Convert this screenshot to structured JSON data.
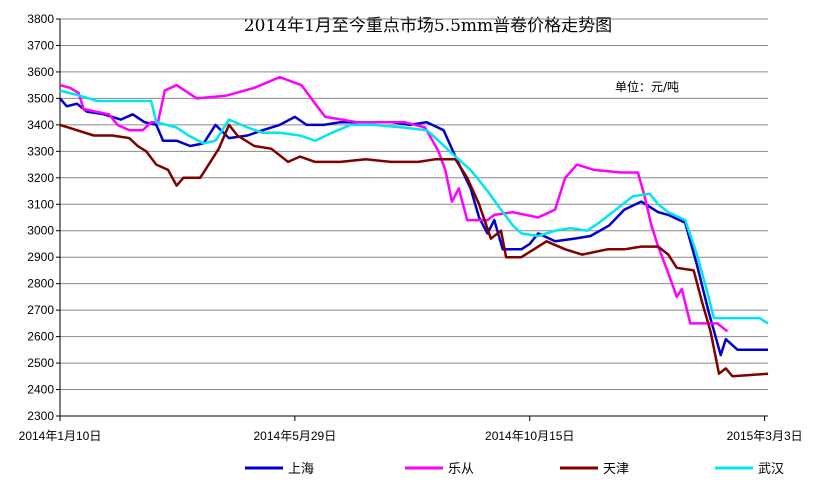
{
  "chart_data": {
    "type": "line",
    "title": "2014年1月至今重点市场5.5mm普卷价格走势图",
    "unit_label": "单位：元/吨",
    "xlabel": "",
    "ylabel": "",
    "ylim": [
      2300,
      3800
    ],
    "yticks": [
      2300,
      2400,
      2500,
      2600,
      2700,
      2800,
      2900,
      3000,
      3100,
      3200,
      3300,
      3400,
      3500,
      3600,
      3700,
      3800
    ],
    "x_range": [
      "2014-01-10",
      "2015-03-05"
    ],
    "xticks": [
      {
        "date": "2014-01-10",
        "label": "2014年1月10日"
      },
      {
        "date": "2014-05-29",
        "label": "2014年5月29日"
      },
      {
        "date": "2014-10-15",
        "label": "2014年10月15日"
      },
      {
        "date": "2015-03-03",
        "label": "2015年3月3日"
      }
    ],
    "grid": "horizontal",
    "legend_position": "bottom",
    "series": [
      {
        "name": "上海",
        "color": "#0000cc",
        "points": [
          [
            "2014-01-10",
            3500
          ],
          [
            "2014-01-14",
            3470
          ],
          [
            "2014-01-20",
            3480
          ],
          [
            "2014-01-26",
            3450
          ],
          [
            "2014-02-05",
            3440
          ],
          [
            "2014-02-15",
            3420
          ],
          [
            "2014-02-22",
            3440
          ],
          [
            "2014-03-01",
            3410
          ],
          [
            "2014-03-08",
            3400
          ],
          [
            "2014-03-12",
            3340
          ],
          [
            "2014-03-20",
            3340
          ],
          [
            "2014-03-28",
            3320
          ],
          [
            "2014-04-05",
            3330
          ],
          [
            "2014-04-12",
            3400
          ],
          [
            "2014-04-20",
            3350
          ],
          [
            "2014-05-01",
            3360
          ],
          [
            "2014-05-10",
            3380
          ],
          [
            "2014-05-20",
            3400
          ],
          [
            "2014-05-29",
            3430
          ],
          [
            "2014-06-05",
            3400
          ],
          [
            "2014-06-15",
            3400
          ],
          [
            "2014-06-25",
            3410
          ],
          [
            "2014-07-05",
            3410
          ],
          [
            "2014-07-15",
            3410
          ],
          [
            "2014-07-25",
            3410
          ],
          [
            "2014-08-05",
            3400
          ],
          [
            "2014-08-15",
            3410
          ],
          [
            "2014-08-25",
            3380
          ],
          [
            "2014-09-01",
            3280
          ],
          [
            "2014-09-10",
            3160
          ],
          [
            "2014-09-15",
            3050
          ],
          [
            "2014-09-20",
            2990
          ],
          [
            "2014-09-24",
            3040
          ],
          [
            "2014-09-29",
            2930
          ],
          [
            "2014-10-10",
            2930
          ],
          [
            "2014-10-15",
            2950
          ],
          [
            "2014-10-20",
            2990
          ],
          [
            "2014-10-30",
            2960
          ],
          [
            "2014-11-10",
            2970
          ],
          [
            "2014-11-20",
            2980
          ],
          [
            "2014-12-01",
            3020
          ],
          [
            "2014-12-10",
            3080
          ],
          [
            "2014-12-20",
            3110
          ],
          [
            "2014-12-30",
            3070
          ],
          [
            "2015-01-05",
            3060
          ],
          [
            "2015-01-15",
            3030
          ],
          [
            "2015-01-22",
            2870
          ],
          [
            "2015-01-29",
            2690
          ],
          [
            "2015-02-05",
            2530
          ],
          [
            "2015-02-08",
            2590
          ],
          [
            "2015-02-15",
            2550
          ],
          [
            "2015-03-05",
            2550
          ]
        ]
      },
      {
        "name": "乐从",
        "color": "#ff00ff",
        "points": [
          [
            "2014-01-10",
            3550
          ],
          [
            "2014-01-16",
            3540
          ],
          [
            "2014-01-21",
            3520
          ],
          [
            "2014-01-24",
            3460
          ],
          [
            "2014-01-31",
            3450
          ],
          [
            "2014-02-08",
            3440
          ],
          [
            "2014-02-13",
            3400
          ],
          [
            "2014-02-20",
            3380
          ],
          [
            "2014-02-28",
            3380
          ],
          [
            "2014-03-05",
            3410
          ],
          [
            "2014-03-09",
            3410
          ],
          [
            "2014-03-13",
            3530
          ],
          [
            "2014-03-20",
            3550
          ],
          [
            "2014-04-01",
            3500
          ],
          [
            "2014-04-18",
            3510
          ],
          [
            "2014-05-05",
            3540
          ],
          [
            "2014-05-20",
            3580
          ],
          [
            "2014-06-02",
            3550
          ],
          [
            "2014-06-10",
            3480
          ],
          [
            "2014-06-16",
            3430
          ],
          [
            "2014-07-05",
            3410
          ],
          [
            "2014-07-20",
            3410
          ],
          [
            "2014-08-02",
            3410
          ],
          [
            "2014-08-14",
            3390
          ],
          [
            "2014-08-22",
            3300
          ],
          [
            "2014-08-26",
            3230
          ],
          [
            "2014-08-30",
            3110
          ],
          [
            "2014-09-03",
            3160
          ],
          [
            "2014-09-08",
            3040
          ],
          [
            "2014-09-20",
            3040
          ],
          [
            "2014-09-24",
            3060
          ],
          [
            "2014-10-05",
            3070
          ],
          [
            "2014-10-20",
            3050
          ],
          [
            "2014-10-30",
            3080
          ],
          [
            "2014-11-05",
            3200
          ],
          [
            "2014-11-12",
            3250
          ],
          [
            "2014-11-22",
            3230
          ],
          [
            "2014-12-08",
            3220
          ],
          [
            "2014-12-18",
            3220
          ],
          [
            "2014-12-22",
            3130
          ],
          [
            "2014-12-26",
            3020
          ],
          [
            "2014-12-30",
            2940
          ],
          [
            "2015-01-05",
            2840
          ],
          [
            "2015-01-10",
            2750
          ],
          [
            "2015-01-13",
            2780
          ],
          [
            "2015-01-18",
            2650
          ],
          [
            "2015-01-25",
            2650
          ],
          [
            "2015-02-03",
            2650
          ],
          [
            "2015-02-09",
            2620
          ]
        ]
      },
      {
        "name": "天津",
        "color": "#800000",
        "points": [
          [
            "2014-01-10",
            3400
          ],
          [
            "2014-01-20",
            3380
          ],
          [
            "2014-01-30",
            3360
          ],
          [
            "2014-02-10",
            3360
          ],
          [
            "2014-02-20",
            3350
          ],
          [
            "2014-02-25",
            3320
          ],
          [
            "2014-03-02",
            3300
          ],
          [
            "2014-03-08",
            3250
          ],
          [
            "2014-03-15",
            3230
          ],
          [
            "2014-03-20",
            3170
          ],
          [
            "2014-03-24",
            3200
          ],
          [
            "2014-04-03",
            3200
          ],
          [
            "2014-04-08",
            3250
          ],
          [
            "2014-04-14",
            3310
          ],
          [
            "2014-04-20",
            3400
          ],
          [
            "2014-04-25",
            3360
          ],
          [
            "2014-05-05",
            3320
          ],
          [
            "2014-05-15",
            3310
          ],
          [
            "2014-05-25",
            3260
          ],
          [
            "2014-06-01",
            3280
          ],
          [
            "2014-06-10",
            3260
          ],
          [
            "2014-06-25",
            3260
          ],
          [
            "2014-07-10",
            3270
          ],
          [
            "2014-07-25",
            3260
          ],
          [
            "2014-08-10",
            3260
          ],
          [
            "2014-08-20",
            3270
          ],
          [
            "2014-09-01",
            3270
          ],
          [
            "2014-09-08",
            3200
          ],
          [
            "2014-09-15",
            3100
          ],
          [
            "2014-09-22",
            2970
          ],
          [
            "2014-09-28",
            3000
          ],
          [
            "2014-10-01",
            2900
          ],
          [
            "2014-10-10",
            2900
          ],
          [
            "2014-10-15",
            2920
          ],
          [
            "2014-10-25",
            2960
          ],
          [
            "2014-11-05",
            2930
          ],
          [
            "2014-11-15",
            2910
          ],
          [
            "2014-11-30",
            2930
          ],
          [
            "2014-12-10",
            2930
          ],
          [
            "2014-12-20",
            2940
          ],
          [
            "2014-12-30",
            2940
          ],
          [
            "2015-01-05",
            2910
          ],
          [
            "2015-01-10",
            2860
          ],
          [
            "2015-01-20",
            2850
          ],
          [
            "2015-01-25",
            2730
          ],
          [
            "2015-01-30",
            2620
          ],
          [
            "2015-02-04",
            2460
          ],
          [
            "2015-02-08",
            2480
          ],
          [
            "2015-02-12",
            2450
          ],
          [
            "2015-03-05",
            2460
          ]
        ]
      },
      {
        "name": "武汉",
        "color": "#00e5ee",
        "points": [
          [
            "2014-01-10",
            3530
          ],
          [
            "2014-01-22",
            3510
          ],
          [
            "2014-02-01",
            3490
          ],
          [
            "2014-02-20",
            3490
          ],
          [
            "2014-03-05",
            3490
          ],
          [
            "2014-03-08",
            3410
          ],
          [
            "2014-03-20",
            3390
          ],
          [
            "2014-03-27",
            3360
          ],
          [
            "2014-04-05",
            3330
          ],
          [
            "2014-04-12",
            3340
          ],
          [
            "2014-04-20",
            3420
          ],
          [
            "2014-05-01",
            3390
          ],
          [
            "2014-05-10",
            3370
          ],
          [
            "2014-05-20",
            3370
          ],
          [
            "2014-06-01",
            3360
          ],
          [
            "2014-06-10",
            3340
          ],
          [
            "2014-06-20",
            3370
          ],
          [
            "2014-07-01",
            3400
          ],
          [
            "2014-07-15",
            3400
          ],
          [
            "2014-08-01",
            3390
          ],
          [
            "2014-08-15",
            3380
          ],
          [
            "2014-08-22",
            3340
          ],
          [
            "2014-09-01",
            3280
          ],
          [
            "2014-09-10",
            3230
          ],
          [
            "2014-09-20",
            3150
          ],
          [
            "2014-09-28",
            3080
          ],
          [
            "2014-10-05",
            3020
          ],
          [
            "2014-10-10",
            2990
          ],
          [
            "2014-10-20",
            2980
          ],
          [
            "2014-10-30",
            3000
          ],
          [
            "2014-11-08",
            3010
          ],
          [
            "2014-11-18",
            3000
          ],
          [
            "2014-11-25",
            3030
          ],
          [
            "2014-12-05",
            3080
          ],
          [
            "2014-12-15",
            3130
          ],
          [
            "2014-12-25",
            3140
          ],
          [
            "2014-12-30",
            3100
          ],
          [
            "2015-01-05",
            3070
          ],
          [
            "2015-01-15",
            3040
          ],
          [
            "2015-01-22",
            2910
          ],
          [
            "2015-01-28",
            2770
          ],
          [
            "2015-02-01",
            2670
          ],
          [
            "2015-02-15",
            2670
          ],
          [
            "2015-02-28",
            2670
          ],
          [
            "2015-03-05",
            2650
          ]
        ]
      }
    ]
  }
}
